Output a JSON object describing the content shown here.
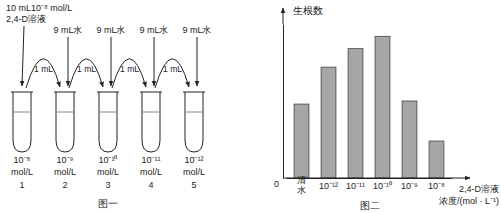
{
  "figure1": {
    "caption": "图一",
    "stock": [
      "10 mL10⁻⁸ mol/L",
      "2,4-D溶液"
    ],
    "water": [
      "9 mL水",
      "9 mL水",
      "9 mL水",
      "9 mL水"
    ],
    "transfer": [
      "1 mL",
      "1 mL",
      "1 mL",
      "1 mL"
    ],
    "tubes": [
      {
        "number": 1,
        "concentration": "10⁻⁸",
        "unit": "mol/L"
      },
      {
        "number": 2,
        "concentration": "10⁻⁹",
        "unit": "mol/L"
      },
      {
        "number": 3,
        "concentration": "10⁻¹⁰",
        "unit": "mol/L"
      },
      {
        "number": 4,
        "concentration": "10⁻¹¹",
        "unit": "mol/L"
      },
      {
        "number": 5,
        "concentration": "10⁻¹²",
        "unit": "mol/L"
      }
    ]
  },
  "chart_data": {
    "type": "bar",
    "title": "图二",
    "y_label": "生根数",
    "x_label": [
      "2,4-D溶液",
      "浓度/(mol · L⁻¹)"
    ],
    "categories": [
      "清水",
      "10⁻¹²",
      "10⁻¹¹",
      "10⁻¹⁰",
      "10⁻⁹",
      "10⁻⁸"
    ],
    "values": [
      48,
      72,
      84,
      92,
      50,
      24
    ],
    "color": "#a6a6a6",
    "ylim": [
      0,
      100
    ],
    "yticks": [
      0
    ],
    "grid": false
  }
}
